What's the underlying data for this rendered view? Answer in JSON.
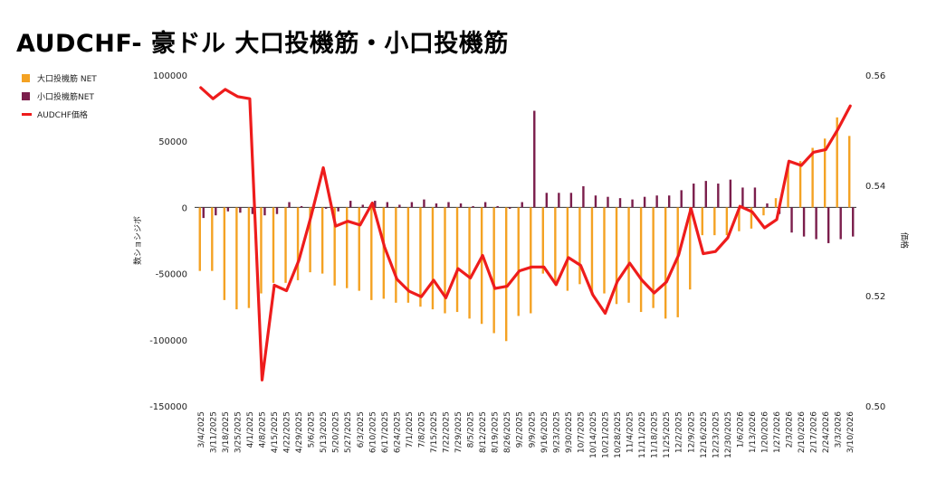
{
  "title": "AUDCHF- 豪ドル 大口投機筋・小口投機筋",
  "chart_data": {
    "type": "bar+line",
    "title": "AUDCHF- 豪ドル 大口投機筋・小口投機筋",
    "ylabel": "数ショシジボ",
    "y2label": "価格",
    "ylim": [
      -150000,
      100000
    ],
    "y2lim": [
      0.5,
      0.56
    ],
    "yticks": [
      "100000",
      "50000",
      "0",
      "-50000",
      "-100000",
      "-150000"
    ],
    "y2ticks": [
      "0.56",
      "0.54",
      "0.52",
      "0.50"
    ],
    "legend_position": "left",
    "categories": [
      "3/4/2025",
      "3/11/2025",
      "3/18/2025",
      "3/25/2025",
      "4/1/2025",
      "4/8/2025",
      "4/15/2025",
      "4/22/2025",
      "4/29/2025",
      "5/6/2025",
      "5/13/2025",
      "5/20/2025",
      "5/27/2025",
      "6/3/2025",
      "6/10/2025",
      "6/17/2025",
      "6/24/2025",
      "7/1/2025",
      "7/8/2025",
      "7/15/2025",
      "7/22/2025",
      "7/29/2025",
      "8/5/2025",
      "8/12/2025",
      "8/19/2025",
      "8/26/2025",
      "9/2/2025",
      "9/9/2025",
      "9/16/2025",
      "9/23/2025",
      "9/30/2025",
      "10/7/2025",
      "10/14/2025",
      "10/21/2025",
      "10/28/2025",
      "11/4/2025",
      "11/11/2025",
      "11/18/2025",
      "11/25/2025",
      "12/2/2025",
      "12/9/2025",
      "12/16/2025",
      "12/23/2025",
      "12/30/2025",
      "1/6/2026",
      "1/13/2026",
      "1/20/2026",
      "1/27/2026",
      "2/3/2026",
      "2/10/2026",
      "2/17/2026",
      "2/24/2026",
      "3/3/2026",
      "3/10/2026"
    ],
    "series": [
      {
        "name": "大口投機筋 NET",
        "type": "bar",
        "color": "#f4a223",
        "values": [
          -48000,
          -48000,
          -70000,
          -77000,
          -76000,
          -65000,
          -57000,
          -57000,
          -55000,
          -49000,
          -50000,
          -59000,
          -61000,
          -63000,
          -70000,
          -69000,
          -72000,
          -72000,
          -75000,
          -77000,
          -80000,
          -79000,
          -84000,
          -88000,
          -95000,
          -101000,
          -82000,
          -80000,
          -50000,
          -58000,
          -63000,
          -58000,
          -66000,
          -65000,
          -73000,
          -72000,
          -79000,
          -76000,
          -84000,
          -83000,
          -62000,
          -21000,
          -21000,
          -21000,
          -18000,
          -16000,
          -6000,
          7000,
          32000,
          35000,
          45000,
          52000,
          68000,
          54000
        ]
      },
      {
        "name": "小口投機筋NET",
        "type": "bar",
        "color": "#7b1e4c",
        "values": [
          -8000,
          -6000,
          -3000,
          -4000,
          -5000,
          -6000,
          -5000,
          4000,
          1000,
          -1000,
          -1000,
          -3000,
          5000,
          2000,
          5000,
          4000,
          2000,
          4000,
          6000,
          3000,
          4000,
          3000,
          1000,
          4000,
          1000,
          -1000,
          4000,
          73000,
          11000,
          11000,
          11000,
          16000,
          9000,
          8000,
          7000,
          6000,
          8000,
          9000,
          9000,
          13000,
          18000,
          20000,
          18000,
          21000,
          15000,
          15000,
          3000,
          -5000,
          -19000,
          -22000,
          -24000,
          -27000,
          -24000,
          -22000
        ]
      },
      {
        "name": "AUDCHF価格",
        "type": "line",
        "color": "#ee1c1c",
        "axis": "right",
        "values": [
          0.5577,
          0.5557,
          0.5574,
          0.5561,
          0.5557,
          0.5047,
          0.5219,
          0.5209,
          0.5264,
          0.5344,
          0.5432,
          0.5326,
          0.5335,
          0.5328,
          0.5368,
          0.5288,
          0.523,
          0.5208,
          0.5198,
          0.5228,
          0.5196,
          0.5249,
          0.5232,
          0.5273,
          0.5213,
          0.5217,
          0.5245,
          0.5252,
          0.5252,
          0.522,
          0.5269,
          0.5255,
          0.5201,
          0.5168,
          0.5226,
          0.5259,
          0.5228,
          0.5205,
          0.5225,
          0.5274,
          0.5358,
          0.5276,
          0.528,
          0.5305,
          0.5362,
          0.5352,
          0.5323,
          0.5338,
          0.5444,
          0.5436,
          0.546,
          0.5465,
          0.5502,
          0.5544
        ]
      }
    ]
  },
  "legend": {
    "items": [
      {
        "label": "大口投機筋  NET",
        "color": "#f4a223"
      },
      {
        "label": "小口投機筋NET",
        "color": "#7b1e4c"
      },
      {
        "label": "AUDCHF価格",
        "color": "#ee1c1c"
      }
    ]
  }
}
